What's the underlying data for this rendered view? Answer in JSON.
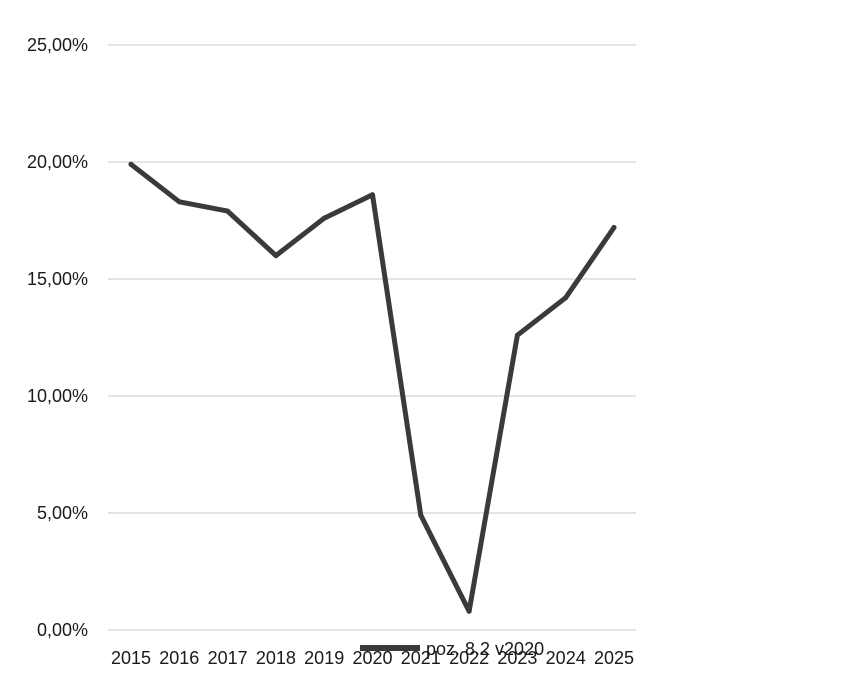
{
  "chart_data": {
    "type": "line",
    "title": "",
    "xlabel": "",
    "ylabel": "",
    "x": [
      "2015",
      "2016",
      "2017",
      "2018",
      "2019",
      "2020",
      "2021",
      "2022",
      "2023",
      "2024",
      "2025"
    ],
    "series": [
      {
        "name": "poz. 8.2 v2020",
        "values": [
          19.9,
          18.3,
          17.9,
          16.0,
          17.6,
          18.6,
          4.9,
          0.8,
          12.6,
          14.2,
          17.2
        ]
      }
    ],
    "ylim": [
      0,
      25
    ],
    "yticks": [
      "0,00%",
      "5,00%",
      "10,00%",
      "15,00%",
      "20,00%",
      "25,00%"
    ],
    "ytick_values": [
      0,
      5,
      10,
      15,
      20,
      25
    ],
    "grid": true,
    "legend_position": "bottom",
    "line_color": "#3a3a3a",
    "grid_color": "#d4d4d4"
  }
}
